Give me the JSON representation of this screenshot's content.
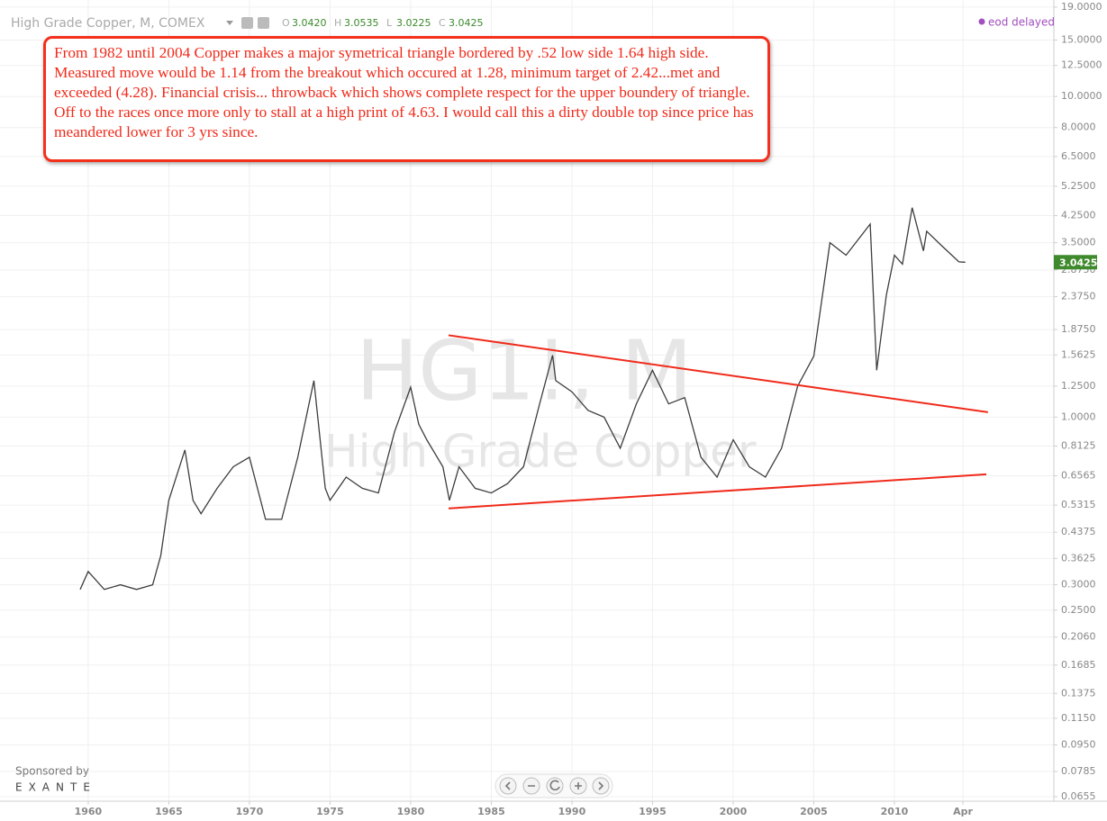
{
  "chart_data": {
    "type": "line",
    "title": "High Grade Copper, M, COMEX",
    "ohlc": [
      {
        "name": "O",
        "value": 3.042,
        "label": "3.0420"
      },
      {
        "name": "H",
        "value": 3.0535,
        "label": "3.0535"
      },
      {
        "name": "L",
        "value": 3.0225,
        "label": "3.0225"
      },
      {
        "name": "C",
        "value": 3.0425,
        "label": "3.0425"
      }
    ],
    "status": "eod delayed",
    "watermark": [
      "HG1!, M",
      "High Grade Copper"
    ],
    "annotation": "From 1982 until 2004 Copper makes a major symetrical triangle bordered by .52 low side 1.64 high side. Measured move would be 1.14 from the breakout which occured at 1.28, minimum target of 2.42...met and exceeded (4.28). Financial crisis... throwback which shows complete respect for the upper boundery of triangle. Off to the races once more only to stall at a high print of 4.63. I would call this a dirty double top since price has meandered lower for 3 yrs since.",
    "sponsor": [
      "Sponsored by",
      "EXANTE"
    ],
    "log_scale": true,
    "grid": true,
    "x": [
      1959.5,
      1960,
      1961,
      1962,
      1963,
      1964,
      1964.5,
      1965,
      1966,
      1966.5,
      1967,
      1968,
      1969,
      1970,
      1971,
      1972,
      1973,
      1974,
      1974.7,
      1975,
      1976,
      1977,
      1978,
      1979,
      1980,
      1980.5,
      1981,
      1982,
      1982.4,
      1983,
      1984,
      1985,
      1986,
      1987,
      1988,
      1988.8,
      1989,
      1990,
      1991,
      1992,
      1993,
      1994,
      1995,
      1996,
      1997,
      1998,
      1999,
      2000,
      2001,
      2002,
      2003,
      2004,
      2005,
      2006,
      2007,
      2008.5,
      2008.9,
      2009.5,
      2010,
      2010.5,
      2011.1,
      2011.8,
      2012,
      2013,
      2014,
      2014.4
    ],
    "series": [
      {
        "name": "HG1!",
        "color": "#3d3d3d",
        "values": [
          0.29,
          0.33,
          0.29,
          0.3,
          0.29,
          0.3,
          0.37,
          0.55,
          0.79,
          0.55,
          0.5,
          0.6,
          0.7,
          0.75,
          0.48,
          0.48,
          0.75,
          1.3,
          0.6,
          0.55,
          0.65,
          0.6,
          0.58,
          0.9,
          1.24,
          0.95,
          0.85,
          0.7,
          0.55,
          0.7,
          0.6,
          0.58,
          0.62,
          0.7,
          1.1,
          1.56,
          1.3,
          1.2,
          1.05,
          1.0,
          0.8,
          1.1,
          1.4,
          1.1,
          1.15,
          0.75,
          0.65,
          0.85,
          0.7,
          0.65,
          0.8,
          1.25,
          1.55,
          3.5,
          3.2,
          4.0,
          1.4,
          2.4,
          3.2,
          3.0,
          4.5,
          3.3,
          3.8,
          3.4,
          3.05,
          3.0425
        ]
      }
    ],
    "trendlines": [
      {
        "x": [
          1982.35,
          2015.8
        ],
        "values": [
          1.8,
          1.036
        ],
        "color": "#f02a1a"
      },
      {
        "x": [
          1982.35,
          2015.7
        ],
        "values": [
          0.519,
          0.663
        ],
        "color": "#f02a1a"
      }
    ],
    "xlim": [
      1954.53,
      2019.89
    ],
    "xticks": [
      1960,
      1965,
      1970,
      1975,
      1980,
      1985,
      1990,
      1995,
      2000,
      2005,
      2010,
      {
        "value": 2014.25,
        "label": "Apr"
      }
    ],
    "ylim": [
      0.0634,
      20
    ],
    "yticks": [
      {
        "value": 19,
        "label": "19.0000"
      },
      {
        "value": 15,
        "label": "15.0000"
      },
      {
        "value": 12.5,
        "label": "12.5000"
      },
      {
        "value": 10,
        "label": "10.0000"
      },
      {
        "value": 8,
        "label": "8.0000"
      },
      {
        "value": 6.5,
        "label": "6.5000"
      },
      {
        "value": 5.25,
        "label": "5.2500"
      },
      {
        "value": 4.25,
        "label": "4.2500"
      },
      {
        "value": 3.5,
        "label": "3.5000"
      },
      {
        "value": 2.875,
        "label": "2.8750"
      },
      {
        "value": 2.375,
        "label": "2.3750"
      },
      {
        "value": 1.875,
        "label": "1.8750"
      },
      {
        "value": 1.5625,
        "label": "1.5625"
      },
      {
        "value": 1.25,
        "label": "1.2500"
      },
      {
        "value": 1,
        "label": "1.0000"
      },
      {
        "value": 0.8125,
        "label": "0.8125"
      },
      {
        "value": 0.6565,
        "label": "0.6565"
      },
      {
        "value": 0.5315,
        "label": "0.5315"
      },
      {
        "value": 0.4375,
        "label": "0.4375"
      },
      {
        "value": 0.3625,
        "label": "0.3625"
      },
      {
        "value": 0.3,
        "label": "0.3000"
      },
      {
        "value": 0.25,
        "label": "0.2500"
      },
      {
        "value": 0.206,
        "label": "0.2060"
      },
      {
        "value": 0.1685,
        "label": "0.1685"
      },
      {
        "value": 0.1375,
        "label": "0.1375"
      },
      {
        "value": 0.115,
        "label": "0.1150"
      },
      {
        "value": 0.095,
        "label": "0.0950"
      },
      {
        "value": 0.0785,
        "label": "0.0785"
      },
      {
        "value": 0.0655,
        "label": "0.0655"
      }
    ]
  }
}
